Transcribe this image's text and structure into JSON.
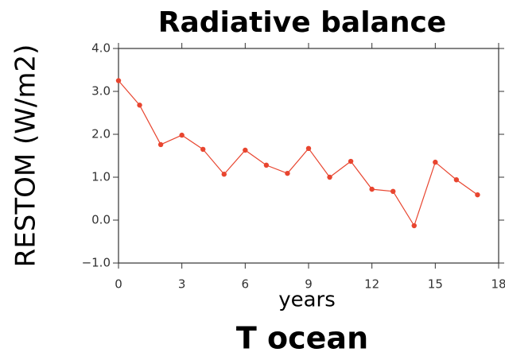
{
  "chart_data": {
    "type": "line",
    "title": "Radiative balance",
    "xlabel": "years",
    "ylabel": "RESTOM (W/m2)",
    "annotation": "T ocean",
    "x": [
      0,
      1,
      2,
      3,
      4,
      5,
      6,
      7,
      8,
      9,
      10,
      11,
      12,
      13,
      14,
      15,
      16,
      17
    ],
    "series": [
      {
        "color": "#e8452f",
        "values": [
          3.25,
          2.68,
          1.76,
          1.98,
          1.65,
          1.07,
          1.63,
          1.28,
          1.09,
          1.67,
          1.0,
          1.37,
          0.72,
          0.67,
          -0.13,
          1.35,
          0.94,
          0.59
        ]
      }
    ],
    "xlim": [
      0,
      18
    ],
    "xticks": [
      0,
      3,
      6,
      9,
      12,
      15,
      18
    ],
    "ylim": [
      -1,
      4
    ],
    "yticks": [
      {
        "value": -1,
        "label": "−1.0"
      },
      {
        "value": 0,
        "label": "0.0"
      },
      {
        "value": 1,
        "label": "1.0"
      },
      {
        "value": 2,
        "label": "2.0"
      },
      {
        "value": 3,
        "label": "3.0"
      },
      {
        "value": 4,
        "label": "4.0"
      }
    ],
    "grid": false
  }
}
